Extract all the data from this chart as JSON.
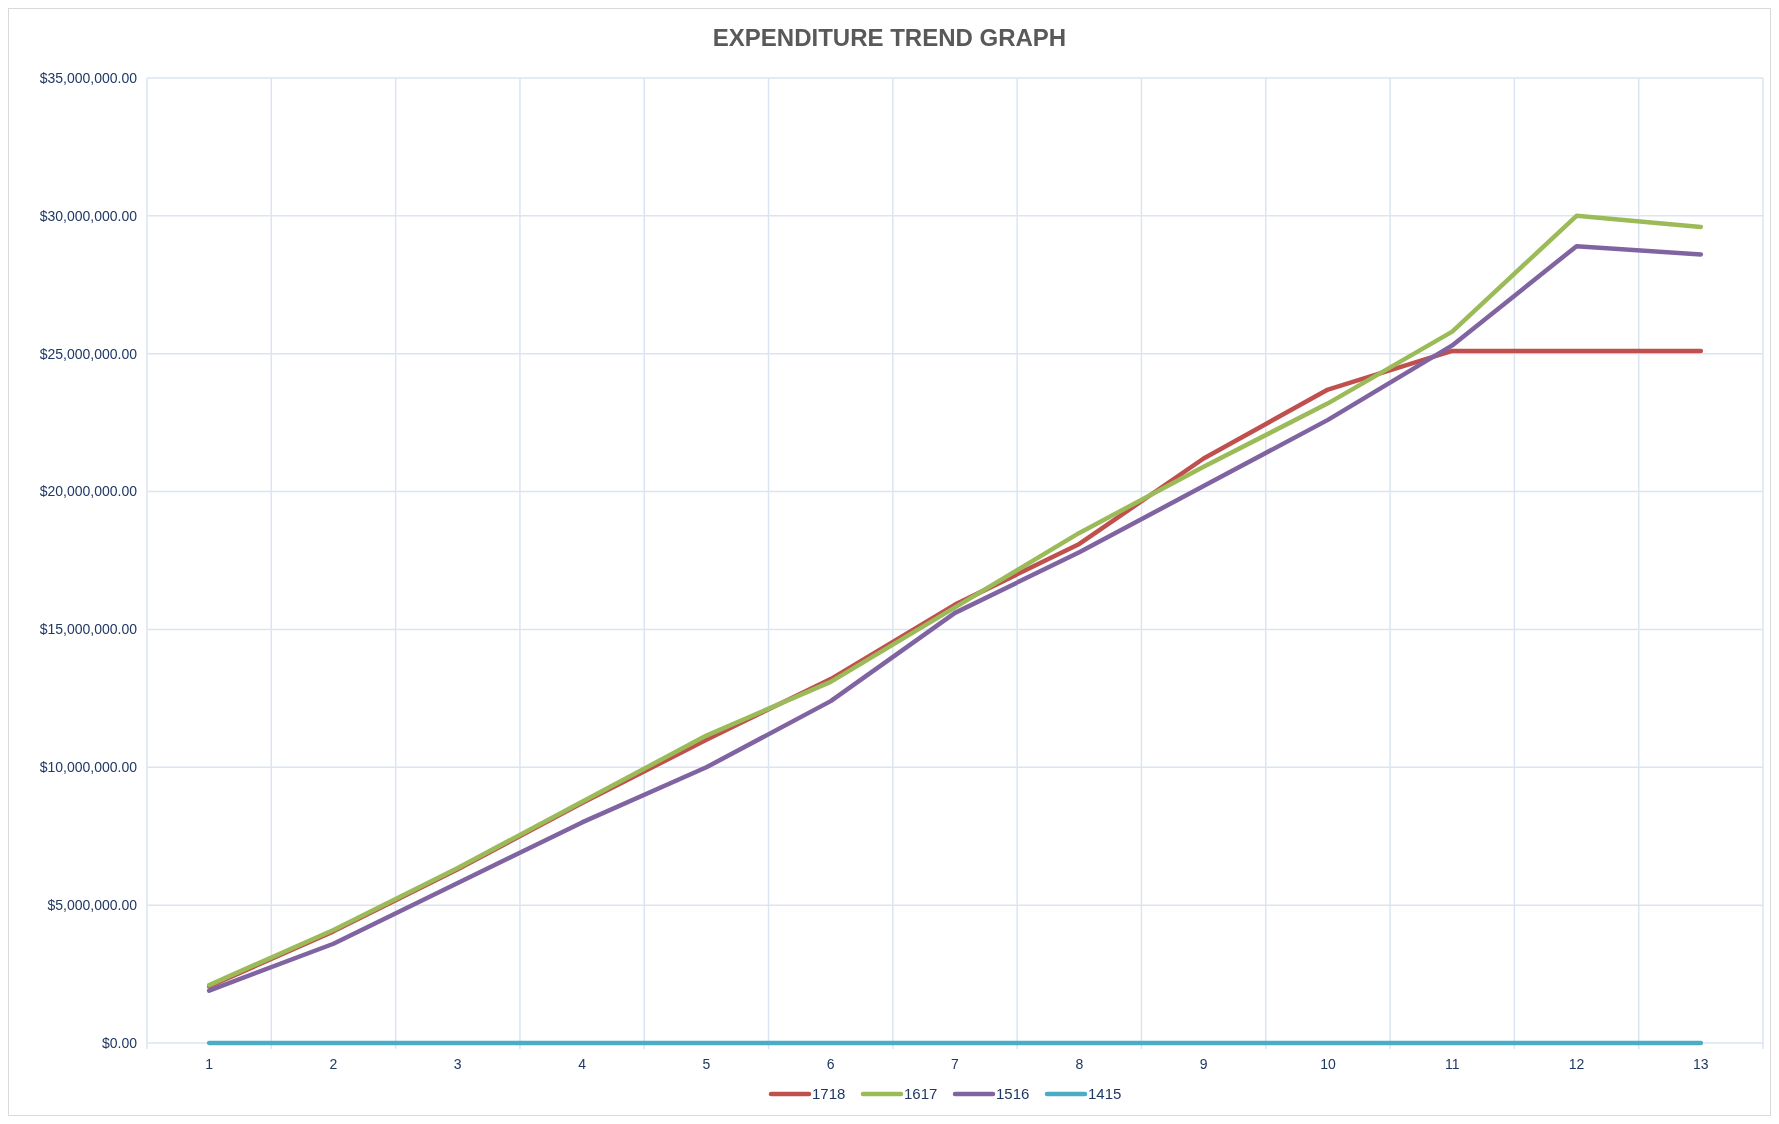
{
  "chart_data": {
    "type": "line",
    "title": "EXPENDITURE TREND GRAPH",
    "categories": [
      "1",
      "2",
      "3",
      "4",
      "5",
      "6",
      "7",
      "8",
      "9",
      "10",
      "11",
      "12",
      "13"
    ],
    "series": [
      {
        "name": "1718",
        "color": "#c0504d",
        "values": [
          2050000,
          4050000,
          6300000,
          8700000,
          11000000,
          13200000,
          15900000,
          18100000,
          21200000,
          23700000,
          25100000,
          25100000,
          25100000
        ]
      },
      {
        "name": "1617",
        "color": "#9bbb59",
        "values": [
          2100000,
          4100000,
          6350000,
          8750000,
          11150000,
          13100000,
          15800000,
          18500000,
          20900000,
          23200000,
          25800000,
          30000000,
          29600000
        ]
      },
      {
        "name": "1516",
        "color": "#8064a2",
        "values": [
          1900000,
          3600000,
          5800000,
          8000000,
          10000000,
          12400000,
          15600000,
          17800000,
          20200000,
          22600000,
          25300000,
          28900000,
          28600000
        ]
      },
      {
        "name": "1415",
        "color": "#4bacc6",
        "values": [
          0,
          0,
          0,
          0,
          0,
          0,
          0,
          0,
          0,
          0,
          0,
          0,
          0
        ]
      }
    ],
    "ylim": [
      0,
      35000000
    ],
    "yticks": [
      {
        "value": 0,
        "label": "$0.00"
      },
      {
        "value": 5000000,
        "label": "$5,000,000.00"
      },
      {
        "value": 10000000,
        "label": "$10,000,000.00"
      },
      {
        "value": 15000000,
        "label": "$15,000,000.00"
      },
      {
        "value": 20000000,
        "label": "$20,000,000.00"
      },
      {
        "value": 25000000,
        "label": "$25,000,000.00"
      },
      {
        "value": 30000000,
        "label": "$30,000,000.00"
      },
      {
        "value": 35000000,
        "label": "$35,000,000.00"
      }
    ],
    "grid": true,
    "legend": "bottom"
  }
}
